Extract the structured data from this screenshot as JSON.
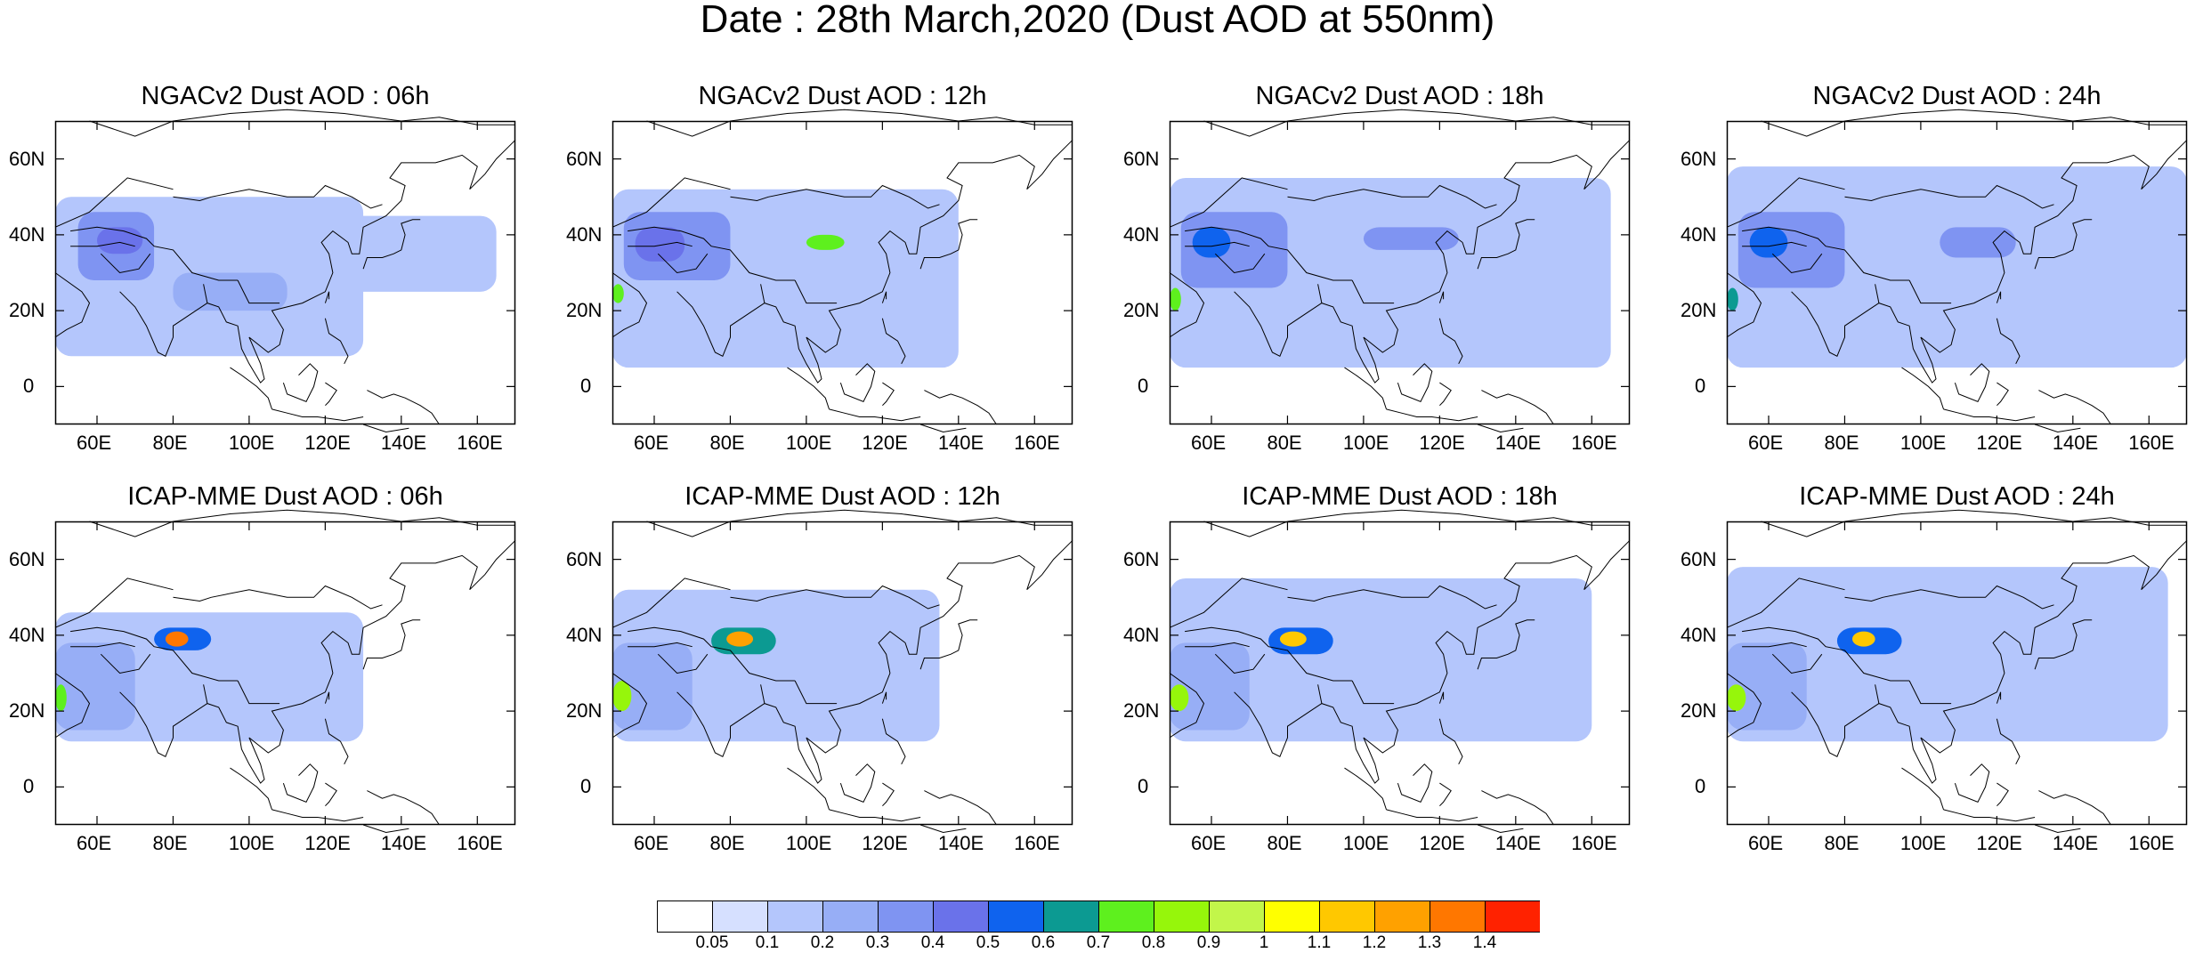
{
  "title": "Date : 28th March,2020 (Dust AOD at 550nm)",
  "lon_labels": [
    "60E",
    "80E",
    "100E",
    "120E",
    "140E",
    "160E"
  ],
  "lat_labels": [
    "60N",
    "40N",
    "20N",
    "0"
  ],
  "lon_values": [
    60,
    80,
    100,
    120,
    140,
    160
  ],
  "lat_values": [
    60,
    40,
    20,
    0
  ],
  "domain": {
    "lon_min": 49,
    "lon_max": 170,
    "lat_min": -10,
    "lat_max": 70
  },
  "panels": [
    {
      "title": "NGACv2 Dust AOD : 06h",
      "model": "NGACv2",
      "hour": "06h",
      "plumes": [
        {
          "lon": [
            49,
            130
          ],
          "lat": [
            8,
            50
          ],
          "aod": 0.1
        },
        {
          "lon": [
            55,
            75
          ],
          "lat": [
            28,
            46
          ],
          "aod": 0.3
        },
        {
          "lon": [
            60,
            72
          ],
          "lat": [
            35,
            42
          ],
          "aod": 0.4
        },
        {
          "lon": [
            120,
            165
          ],
          "lat": [
            25,
            45
          ],
          "aod": 0.1
        },
        {
          "lon": [
            80,
            110
          ],
          "lat": [
            20,
            30
          ],
          "aod": 0.2
        }
      ]
    },
    {
      "title": "NGACv2 Dust AOD : 12h",
      "model": "NGACv2",
      "hour": "12h",
      "plumes": [
        {
          "lon": [
            49,
            140
          ],
          "lat": [
            5,
            52
          ],
          "aod": 0.1
        },
        {
          "lon": [
            52,
            80
          ],
          "lat": [
            28,
            46
          ],
          "aod": 0.3
        },
        {
          "lon": [
            55,
            68
          ],
          "lat": [
            33,
            42
          ],
          "aod": 0.4
        },
        {
          "lon": [
            100,
            110
          ],
          "lat": [
            36,
            40
          ],
          "aod": 0.7
        },
        {
          "lon": [
            49,
            52
          ],
          "lat": [
            22,
            27
          ],
          "aod": 0.7
        }
      ]
    },
    {
      "title": "NGACv2 Dust AOD : 18h",
      "model": "NGACv2",
      "hour": "18h",
      "plumes": [
        {
          "lon": [
            49,
            165
          ],
          "lat": [
            5,
            55
          ],
          "aod": 0.1
        },
        {
          "lon": [
            52,
            80
          ],
          "lat": [
            26,
            46
          ],
          "aod": 0.3
        },
        {
          "lon": [
            100,
            125
          ],
          "lat": [
            36,
            42
          ],
          "aod": 0.3
        },
        {
          "lon": [
            55,
            65
          ],
          "lat": [
            34,
            42
          ],
          "aod": 0.5
        },
        {
          "lon": [
            49,
            52
          ],
          "lat": [
            20,
            26
          ],
          "aod": 0.7
        }
      ]
    },
    {
      "title": "NGACv2 Dust AOD : 24h",
      "model": "NGACv2",
      "hour": "24h",
      "plumes": [
        {
          "lon": [
            49,
            170
          ],
          "lat": [
            5,
            58
          ],
          "aod": 0.1
        },
        {
          "lon": [
            52,
            80
          ],
          "lat": [
            26,
            46
          ],
          "aod": 0.3
        },
        {
          "lon": [
            105,
            125
          ],
          "lat": [
            34,
            42
          ],
          "aod": 0.3
        },
        {
          "lon": [
            55,
            65
          ],
          "lat": [
            34,
            42
          ],
          "aod": 0.5
        },
        {
          "lon": [
            49,
            52
          ],
          "lat": [
            20,
            26
          ],
          "aod": 0.6
        }
      ]
    },
    {
      "title": "ICAP-MME Dust AOD : 06h",
      "model": "ICAP-MME",
      "hour": "06h",
      "plumes": [
        {
          "lon": [
            49,
            130
          ],
          "lat": [
            12,
            46
          ],
          "aod": 0.1
        },
        {
          "lon": [
            49,
            70
          ],
          "lat": [
            15,
            38
          ],
          "aod": 0.2
        },
        {
          "lon": [
            75,
            90
          ],
          "lat": [
            36,
            42
          ],
          "aod": 0.5
        },
        {
          "lon": [
            78,
            84
          ],
          "lat": [
            37,
            41
          ],
          "aod": 1.3
        },
        {
          "lon": [
            49,
            52
          ],
          "lat": [
            20,
            27
          ],
          "aod": 0.7
        }
      ]
    },
    {
      "title": "ICAP-MME Dust AOD : 12h",
      "model": "ICAP-MME",
      "hour": "12h",
      "plumes": [
        {
          "lon": [
            49,
            135
          ],
          "lat": [
            12,
            52
          ],
          "aod": 0.1
        },
        {
          "lon": [
            49,
            70
          ],
          "lat": [
            15,
            38
          ],
          "aod": 0.2
        },
        {
          "lon": [
            75,
            92
          ],
          "lat": [
            35,
            42
          ],
          "aod": 0.6
        },
        {
          "lon": [
            79,
            86
          ],
          "lat": [
            37,
            41
          ],
          "aod": 1.2
        },
        {
          "lon": [
            49,
            54
          ],
          "lat": [
            20,
            28
          ],
          "aod": 0.8
        }
      ]
    },
    {
      "title": "ICAP-MME Dust AOD : 18h",
      "model": "ICAP-MME",
      "hour": "18h",
      "plumes": [
        {
          "lon": [
            49,
            160
          ],
          "lat": [
            12,
            55
          ],
          "aod": 0.1
        },
        {
          "lon": [
            49,
            70
          ],
          "lat": [
            15,
            38
          ],
          "aod": 0.2
        },
        {
          "lon": [
            75,
            92
          ],
          "lat": [
            35,
            42
          ],
          "aod": 0.5
        },
        {
          "lon": [
            78,
            85
          ],
          "lat": [
            37,
            41
          ],
          "aod": 1.1
        },
        {
          "lon": [
            49,
            54
          ],
          "lat": [
            20,
            27
          ],
          "aod": 0.8
        }
      ]
    },
    {
      "title": "ICAP-MME Dust AOD : 24h",
      "model": "ICAP-MME",
      "hour": "24h",
      "plumes": [
        {
          "lon": [
            49,
            165
          ],
          "lat": [
            12,
            58
          ],
          "aod": 0.1
        },
        {
          "lon": [
            49,
            70
          ],
          "lat": [
            15,
            38
          ],
          "aod": 0.2
        },
        {
          "lon": [
            78,
            95
          ],
          "lat": [
            35,
            42
          ],
          "aod": 0.5
        },
        {
          "lon": [
            82,
            88
          ],
          "lat": [
            37,
            41
          ],
          "aod": 1.1
        },
        {
          "lon": [
            49,
            54
          ],
          "lat": [
            20,
            27
          ],
          "aod": 0.8
        }
      ]
    }
  ],
  "colorbar": {
    "labels": [
      "0.05",
      "0.1",
      "0.2",
      "0.3",
      "0.4",
      "0.5",
      "0.6",
      "0.7",
      "0.8",
      "0.9",
      "1",
      "1.1",
      "1.2",
      "1.3",
      "1.4"
    ],
    "levels": [
      0.05,
      0.1,
      0.2,
      0.3,
      0.4,
      0.5,
      0.6,
      0.7,
      0.8,
      0.9,
      1,
      1.1,
      1.2,
      1.3,
      1.4
    ],
    "colors": [
      "#ffffff",
      "#d6e0ff",
      "#b4c6fc",
      "#97aef6",
      "#7f94f2",
      "#6a72ea",
      "#0f63ee",
      "#0c9a92",
      "#5ef01e",
      "#96f60b",
      "#c2f64a",
      "#ffff00",
      "#ffc800",
      "#ffa100",
      "#ff7700",
      "#ff2200"
    ]
  }
}
